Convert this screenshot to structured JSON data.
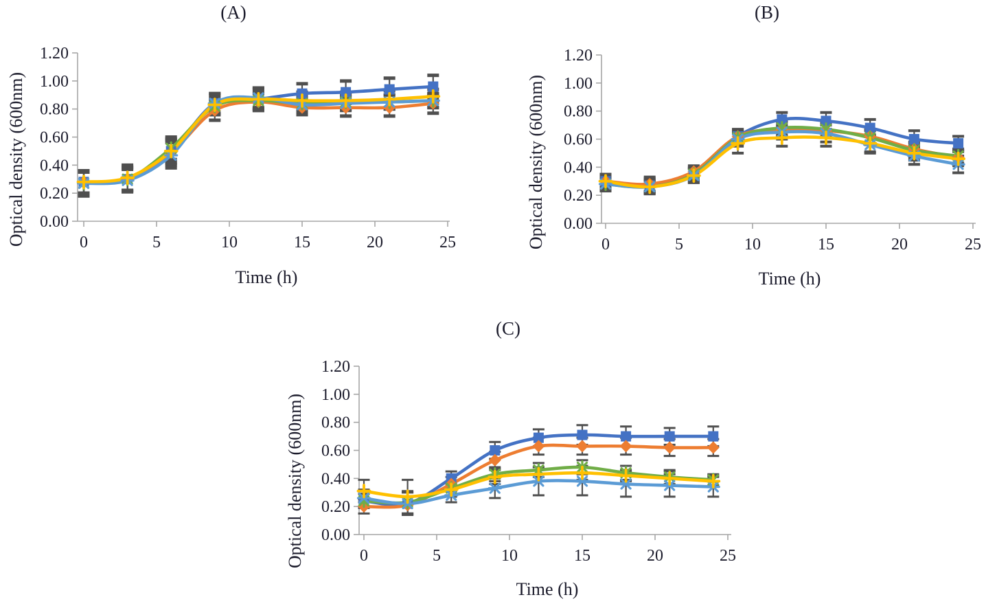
{
  "figure": {
    "type": "multi-panel-line-figure",
    "panel_count": 3,
    "background": "#ffffff"
  },
  "colors": {
    "text": "#1b1b2b",
    "axis": "#a6a6a6",
    "error_bar": "#4f4f4f",
    "series_blue": "#4472C4",
    "series_orange": "#ED7D31",
    "series_green": "#70AD47",
    "series_yellow": "#FFC000",
    "series_lightblue": "#5B9BD5"
  },
  "chart_data": [
    {
      "type": "line",
      "title": "(A)",
      "xlabel": "Time (h)",
      "ylabel": "Optical density (600nm)",
      "x": [
        0,
        3,
        6,
        9,
        12,
        15,
        18,
        21,
        24
      ],
      "xlim": [
        0,
        25
      ],
      "ylim": [
        0,
        1.2
      ],
      "xtick_values": [
        0,
        5,
        10,
        15,
        20,
        25
      ],
      "xtick_labels": [
        "0",
        "5",
        "10",
        "15",
        "20",
        "25"
      ],
      "ytick_values": [
        1.2,
        1.0,
        0.8,
        0.6,
        0.4,
        0.2,
        0.0
      ],
      "ytick_labels": [
        "1.20",
        "1.00",
        "0.80",
        "0.60",
        "0.40",
        "0.20",
        "0.00"
      ],
      "grid": false,
      "legend": "none",
      "series": [
        {
          "id": "blue-square",
          "marker": "square",
          "color": "#4472C4",
          "values": [
            0.28,
            0.3,
            0.5,
            0.84,
            0.87,
            0.91,
            0.92,
            0.94,
            0.96
          ],
          "errors": [
            0.08,
            0.09,
            0.08,
            0.07,
            0.08,
            0.07,
            0.08,
            0.08,
            0.08
          ]
        },
        {
          "id": "orange-diamond",
          "marker": "diamond",
          "color": "#ED7D31",
          "values": [
            0.28,
            0.3,
            0.49,
            0.79,
            0.85,
            0.81,
            0.81,
            0.81,
            0.84
          ],
          "errors": [
            0.08,
            0.08,
            0.09,
            0.07,
            0.06,
            0.05,
            0.06,
            0.06,
            0.07
          ]
        },
        {
          "id": "green-star",
          "marker": "star",
          "color": "#70AD47",
          "values": [
            0.27,
            0.3,
            0.52,
            0.82,
            0.86,
            0.84,
            0.85,
            0.85,
            0.86
          ],
          "errors": [
            0.08,
            0.08,
            0.08,
            0.06,
            0.06,
            0.05,
            0.05,
            0.05,
            0.05
          ]
        },
        {
          "id": "yellow-plus",
          "marker": "plus",
          "color": "#FFC000",
          "values": [
            0.28,
            0.31,
            0.5,
            0.83,
            0.87,
            0.86,
            0.86,
            0.87,
            0.89
          ],
          "errors": [
            0.08,
            0.09,
            0.09,
            0.07,
            0.07,
            0.06,
            0.06,
            0.06,
            0.05
          ]
        },
        {
          "id": "lightblue-asterisk",
          "marker": "asterisk",
          "color": "#5B9BD5",
          "values": [
            0.27,
            0.29,
            0.47,
            0.84,
            0.88,
            0.83,
            0.84,
            0.85,
            0.86
          ],
          "errors": [
            0.09,
            0.08,
            0.09,
            0.07,
            0.07,
            0.05,
            0.05,
            0.05,
            0.05
          ]
        }
      ]
    },
    {
      "type": "line",
      "title": "(B)",
      "xlabel": "Time (h)",
      "ylabel": "Optical density (600nm)",
      "x": [
        0,
        3,
        6,
        9,
        12,
        15,
        18,
        21,
        24
      ],
      "xlim": [
        0,
        25
      ],
      "ylim": [
        0,
        1.2
      ],
      "xtick_values": [
        0,
        5,
        10,
        15,
        20,
        25
      ],
      "xtick_labels": [
        "0",
        "5",
        "10",
        "15",
        "20",
        "25"
      ],
      "ytick_values": [
        1.2,
        1.0,
        0.8,
        0.6,
        0.4,
        0.2,
        0.0
      ],
      "ytick_labels": [
        "1.20",
        "1.00",
        "0.80",
        "0.60",
        "0.40",
        "0.20",
        "0.00"
      ],
      "grid": false,
      "legend": "none",
      "series": [
        {
          "id": "blue-square",
          "marker": "square",
          "color": "#4472C4",
          "values": [
            0.3,
            0.27,
            0.35,
            0.62,
            0.74,
            0.73,
            0.68,
            0.6,
            0.57
          ],
          "errors": [
            0.04,
            0.05,
            0.05,
            0.05,
            0.05,
            0.06,
            0.06,
            0.06,
            0.05
          ]
        },
        {
          "id": "orange-diamond",
          "marker": "diamond",
          "color": "#ED7D31",
          "values": [
            0.3,
            0.28,
            0.37,
            0.62,
            0.67,
            0.66,
            0.62,
            0.53,
            0.47
          ],
          "errors": [
            0.04,
            0.05,
            0.04,
            0.05,
            0.05,
            0.05,
            0.05,
            0.05,
            0.05
          ]
        },
        {
          "id": "green-star",
          "marker": "star",
          "color": "#70AD47",
          "values": [
            0.28,
            0.26,
            0.35,
            0.61,
            0.68,
            0.67,
            0.61,
            0.52,
            0.48
          ],
          "errors": [
            0.04,
            0.04,
            0.04,
            0.05,
            0.05,
            0.05,
            0.05,
            0.05,
            0.05
          ]
        },
        {
          "id": "yellow-plus",
          "marker": "plus",
          "color": "#FFC000",
          "values": [
            0.3,
            0.26,
            0.34,
            0.57,
            0.61,
            0.61,
            0.57,
            0.5,
            0.46
          ],
          "errors": [
            0.05,
            0.05,
            0.05,
            0.07,
            0.06,
            0.06,
            0.06,
            0.05,
            0.05
          ]
        },
        {
          "id": "lightblue-asterisk",
          "marker": "asterisk",
          "color": "#5B9BD5",
          "values": [
            0.28,
            0.26,
            0.34,
            0.6,
            0.65,
            0.64,
            0.56,
            0.48,
            0.42
          ],
          "errors": [
            0.05,
            0.05,
            0.05,
            0.05,
            0.05,
            0.06,
            0.06,
            0.06,
            0.06
          ]
        }
      ]
    },
    {
      "type": "line",
      "title": "(C)",
      "xlabel": "Time (h)",
      "ylabel": "Optical density (600nm)",
      "x": [
        0,
        3,
        6,
        9,
        12,
        15,
        18,
        21,
        24
      ],
      "xlim": [
        0,
        25
      ],
      "ylim": [
        0,
        1.2
      ],
      "xtick_values": [
        0,
        5,
        10,
        15,
        20,
        25
      ],
      "xtick_labels": [
        "0",
        "5",
        "10",
        "15",
        "20",
        "25"
      ],
      "ytick_values": [
        1.2,
        1.0,
        0.8,
        0.6,
        0.4,
        0.2,
        0.0
      ],
      "ytick_labels": [
        "1.20",
        "1.00",
        "0.80",
        "0.60",
        "0.40",
        "0.20",
        "0.00"
      ],
      "grid": false,
      "legend": "none",
      "series": [
        {
          "id": "blue-square",
          "marker": "square",
          "color": "#4472C4",
          "values": [
            0.24,
            0.22,
            0.4,
            0.6,
            0.69,
            0.71,
            0.7,
            0.7,
            0.7
          ],
          "errors": [
            0.05,
            0.08,
            0.05,
            0.06,
            0.06,
            0.07,
            0.07,
            0.06,
            0.07
          ]
        },
        {
          "id": "orange-diamond",
          "marker": "diamond",
          "color": "#ED7D31",
          "values": [
            0.2,
            0.21,
            0.36,
            0.53,
            0.63,
            0.63,
            0.63,
            0.62,
            0.62
          ],
          "errors": [
            0.05,
            0.06,
            0.05,
            0.06,
            0.06,
            0.06,
            0.06,
            0.06,
            0.06
          ]
        },
        {
          "id": "green-star",
          "marker": "star",
          "color": "#70AD47",
          "values": [
            0.24,
            0.23,
            0.33,
            0.43,
            0.46,
            0.48,
            0.44,
            0.41,
            0.39
          ],
          "errors": [
            0.05,
            0.08,
            0.05,
            0.05,
            0.05,
            0.05,
            0.05,
            0.05,
            0.04
          ]
        },
        {
          "id": "yellow-plus",
          "marker": "plus",
          "color": "#FFC000",
          "values": [
            0.31,
            0.27,
            0.32,
            0.41,
            0.43,
            0.44,
            0.42,
            0.4,
            0.38
          ],
          "errors": [
            0.08,
            0.12,
            0.05,
            0.05,
            0.05,
            0.05,
            0.04,
            0.05,
            0.04
          ]
        },
        {
          "id": "lightblue-asterisk",
          "marker": "asterisk",
          "color": "#5B9BD5",
          "values": [
            0.26,
            0.22,
            0.28,
            0.33,
            0.38,
            0.38,
            0.36,
            0.35,
            0.34
          ],
          "errors": [
            0.06,
            0.08,
            0.05,
            0.07,
            0.1,
            0.1,
            0.09,
            0.08,
            0.07
          ]
        }
      ]
    }
  ]
}
